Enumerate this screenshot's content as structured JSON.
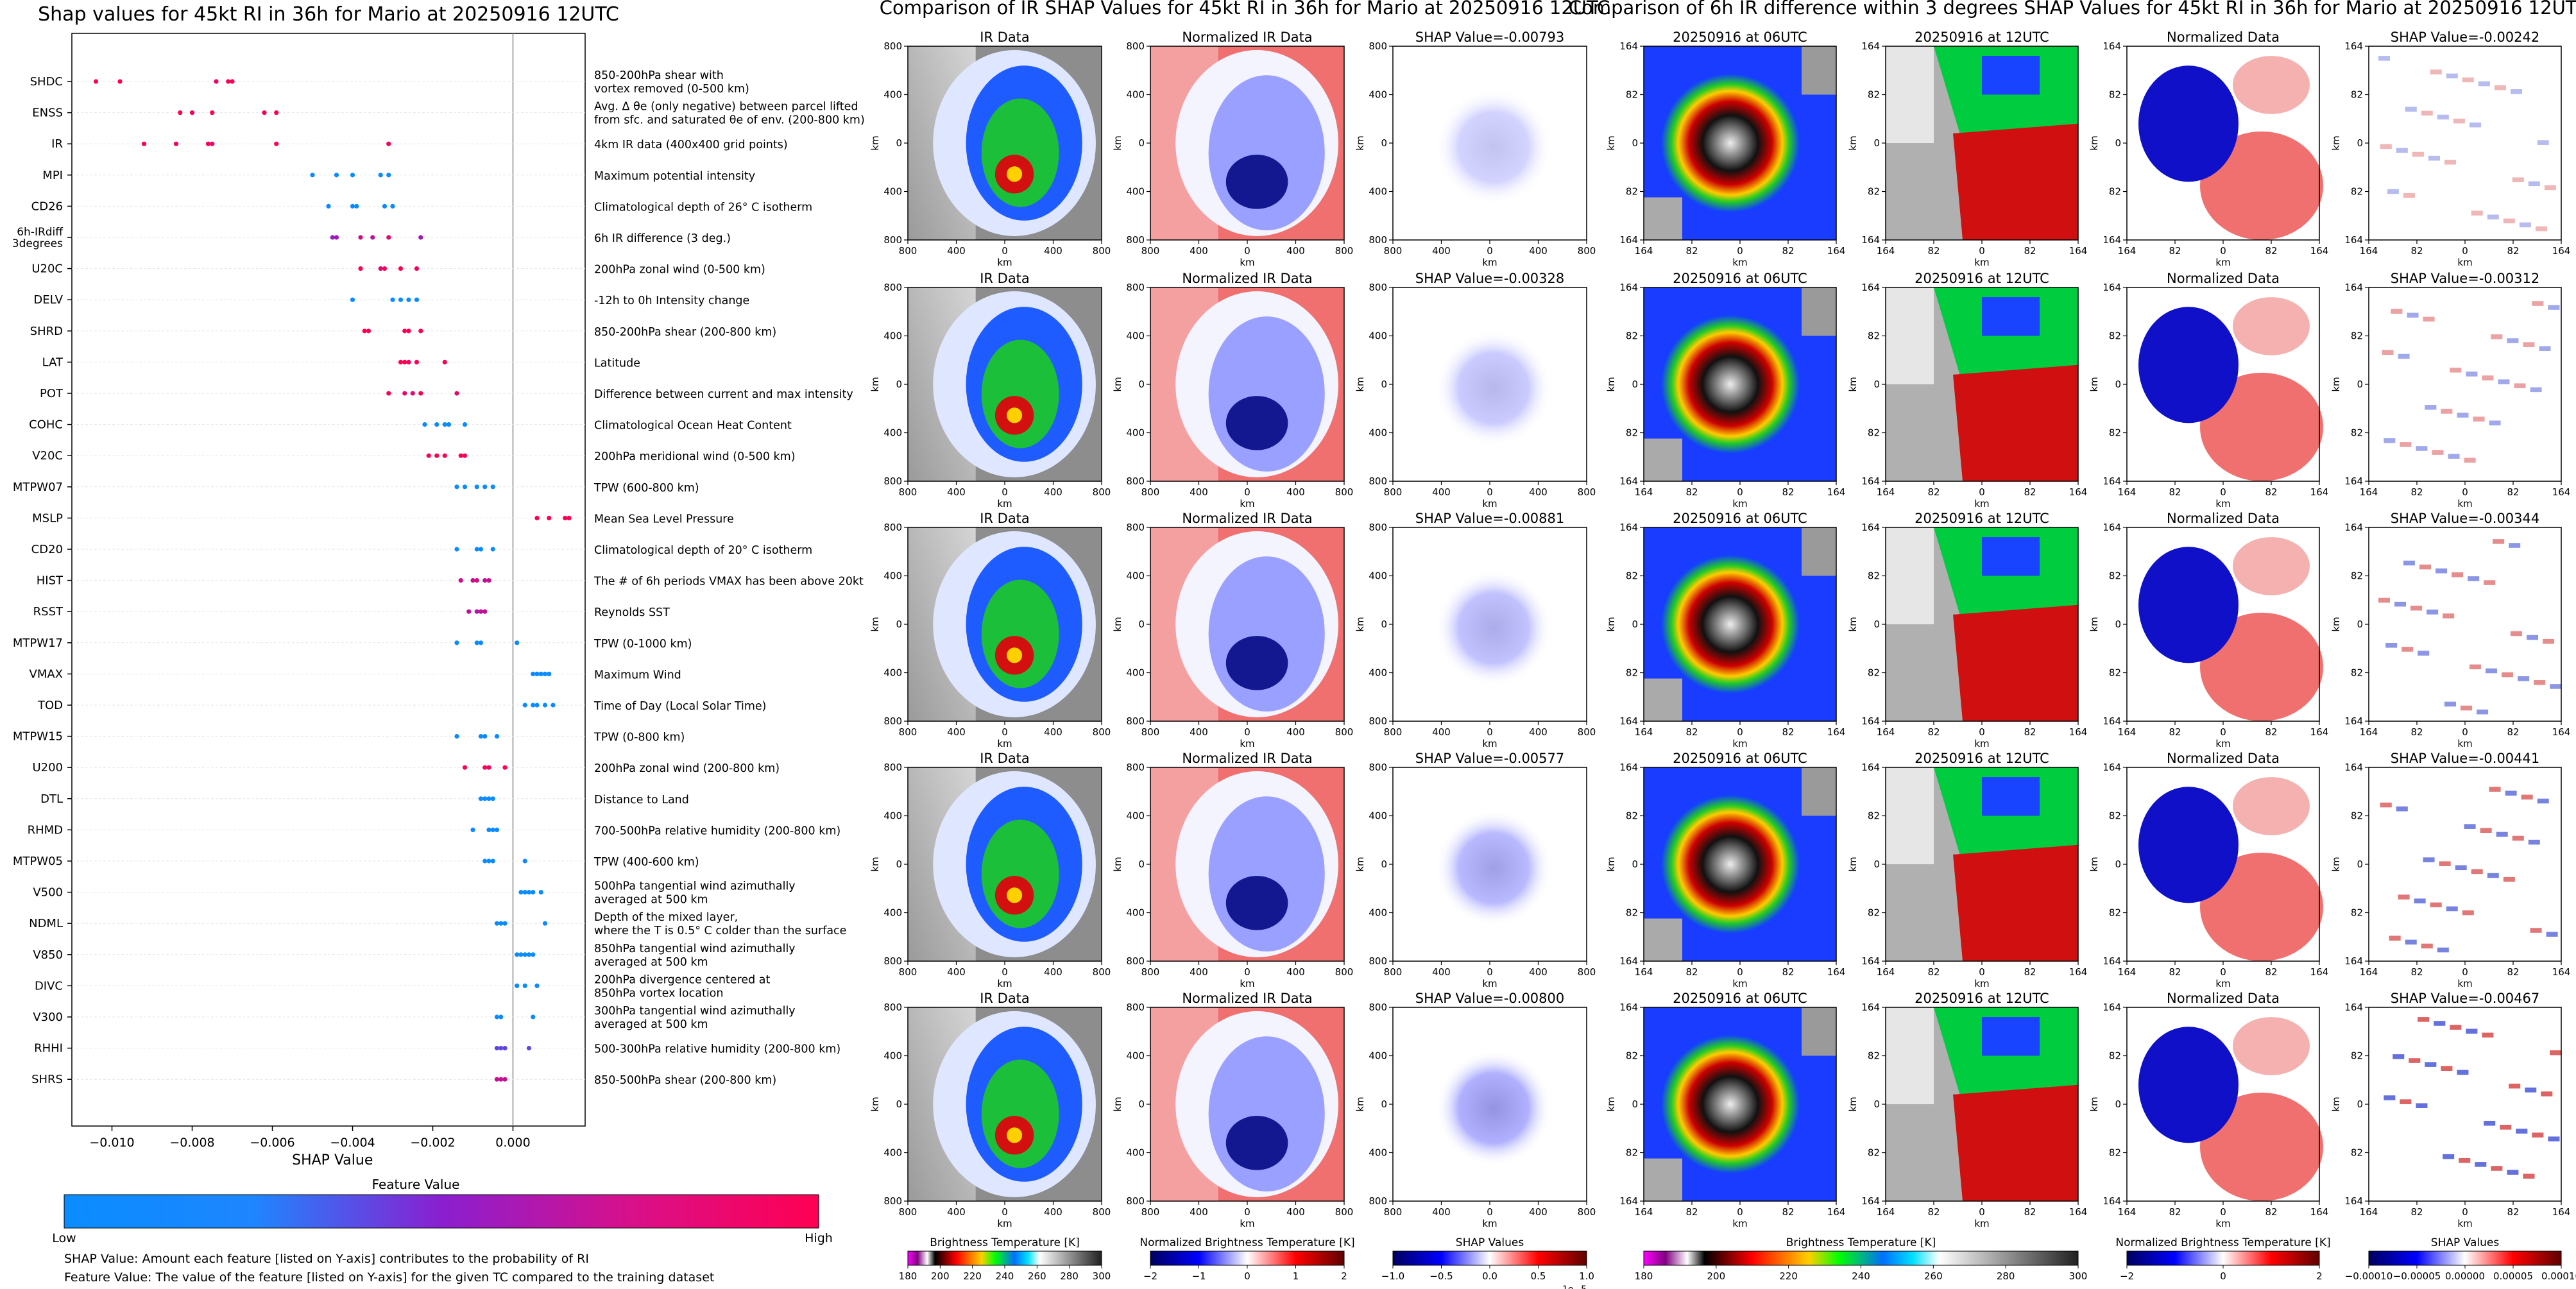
{
  "left": {
    "title": "Shap values for 45kt RI in 36h for Mario at 20250916 12UTC",
    "xlabel": "SHAP Value",
    "xticks": [
      "−0.010",
      "−0.008",
      "−0.006",
      "−0.004",
      "−0.002",
      "0.000"
    ],
    "colorbar_title": "Feature Value",
    "colorbar_low": "Low",
    "colorbar_high": "High",
    "note1": "SHAP Value: Amount each feature [listed on Y-axis] contributes to the probability of RI",
    "note2": "Feature Value: The value of the feature [listed on Y-axis] for the given TC compared to the training dataset"
  },
  "features": [
    {
      "name": "SHDC",
      "desc": [
        "850-200hPa shear with",
        "vortex removed (0-500 km)"
      ]
    },
    {
      "name": "ENSS",
      "desc": [
        "Avg. Δ θe (only negative) between parcel lifted",
        "from sfc. and saturated θe of env. (200-800 km)"
      ]
    },
    {
      "name": "IR",
      "desc": [
        "4km IR data (400x400 grid points)"
      ]
    },
    {
      "name": "MPI",
      "desc": [
        "Maximum potential intensity"
      ]
    },
    {
      "name": "CD26",
      "desc": [
        "Climatological depth of 26° C isotherm"
      ]
    },
    {
      "name": "6h-IRdiff\n3degrees",
      "desc": [
        "6h IR difference (3 deg.)"
      ]
    },
    {
      "name": "U20C",
      "desc": [
        "200hPa zonal wind (0-500 km)"
      ]
    },
    {
      "name": "DELV",
      "desc": [
        "-12h to 0h Intensity change"
      ]
    },
    {
      "name": "SHRD",
      "desc": [
        "850-200hPa shear (200-800 km)"
      ]
    },
    {
      "name": "LAT",
      "desc": [
        "Latitude"
      ]
    },
    {
      "name": "POT",
      "desc": [
        "Difference between current and max intensity"
      ]
    },
    {
      "name": "COHC",
      "desc": [
        "Climatological Ocean Heat Content"
      ]
    },
    {
      "name": "V20C",
      "desc": [
        "200hPa meridional wind (0-500 km)"
      ]
    },
    {
      "name": "MTPW07",
      "desc": [
        "TPW (600-800 km)"
      ]
    },
    {
      "name": "MSLP",
      "desc": [
        "Mean Sea Level Pressure"
      ]
    },
    {
      "name": "CD20",
      "desc": [
        "Climatological depth of 20° C isotherm"
      ]
    },
    {
      "name": "HIST",
      "desc": [
        "The # of 6h periods VMAX has been above 20kt"
      ]
    },
    {
      "name": "RSST",
      "desc": [
        "Reynolds SST"
      ]
    },
    {
      "name": "MTPW17",
      "desc": [
        "TPW (0-1000 km)"
      ]
    },
    {
      "name": "VMAX",
      "desc": [
        "Maximum Wind"
      ]
    },
    {
      "name": "TOD",
      "desc": [
        "Time of Day (Local Solar Time)"
      ]
    },
    {
      "name": "MTPW15",
      "desc": [
        "TPW (0-800 km)"
      ]
    },
    {
      "name": "U200",
      "desc": [
        "200hPa zonal wind (200-800 km)"
      ]
    },
    {
      "name": "DTL",
      "desc": [
        "Distance to Land"
      ]
    },
    {
      "name": "RHMD",
      "desc": [
        "700-500hPa relative humidity (200-800 km)"
      ]
    },
    {
      "name": "MTPW05",
      "desc": [
        "TPW (400-600 km)"
      ]
    },
    {
      "name": "V500",
      "desc": [
        "500hPa tangential wind azimuthally",
        "averaged at 500 km"
      ]
    },
    {
      "name": "NDML",
      "desc": [
        "Depth of the mixed layer,",
        "where the T is 0.5° C colder than the surface"
      ]
    },
    {
      "name": "V850",
      "desc": [
        "850hPa tangential wind azimuthally",
        "averaged at 500 km"
      ]
    },
    {
      "name": "DIVC",
      "desc": [
        "200hPa divergence centered at",
        "850hPa vortex location"
      ]
    },
    {
      "name": "V300",
      "desc": [
        "300hPa tangential wind azimuthally",
        "averaged at 500 km"
      ]
    },
    {
      "name": "RHHI",
      "desc": [
        "500-300hPa relative humidity (200-800 km)"
      ]
    },
    {
      "name": "SHRS",
      "desc": [
        "850-500hPa shear (200-800 km)"
      ]
    }
  ],
  "chart_data": {
    "type": "scatter",
    "title": "Shap values for 45kt RI in 36h for Mario at 20250916 12UTC",
    "xlabel": "SHAP Value",
    "xlim": [
      -0.011,
      0.0018
    ],
    "colors": {
      "low": "#0a8cff",
      "mid": "#8a1fd0",
      "high": "#ff0052"
    },
    "series": [
      {
        "name": "SHDC",
        "x": [
          -0.0104,
          -0.0098,
          -0.0074,
          -0.0071,
          -0.007
        ],
        "fv": [
          1,
          1,
          0.95,
          0.95,
          1
        ]
      },
      {
        "name": "ENSS",
        "x": [
          -0.0083,
          -0.008,
          -0.0075,
          -0.0062,
          -0.0059
        ],
        "fv": [
          1,
          0.95,
          1,
          0.95,
          1
        ]
      },
      {
        "name": "IR",
        "x": [
          -0.0092,
          -0.0084,
          -0.0076,
          -0.0075,
          -0.0059,
          -0.0031
        ],
        "fv": [
          1,
          0.95,
          1,
          0.9,
          1,
          0.95
        ]
      },
      {
        "name": "MPI",
        "x": [
          -0.005,
          -0.0044,
          -0.004,
          -0.0033,
          -0.0031
        ],
        "fv": [
          0,
          0,
          0,
          0,
          0
        ]
      },
      {
        "name": "CD26",
        "x": [
          -0.0046,
          -0.004,
          -0.0039,
          -0.0032,
          -0.003
        ],
        "fv": [
          0,
          0,
          0,
          0,
          0
        ]
      },
      {
        "name": "6h-IRdiff\n3degrees",
        "x": [
          -0.0045,
          -0.0044,
          -0.0038,
          -0.0035,
          -0.0031,
          -0.0023
        ],
        "fv": [
          0.55,
          0.6,
          0.8,
          0.7,
          0.9,
          0.6
        ]
      },
      {
        "name": "U20C",
        "x": [
          -0.0038,
          -0.0033,
          -0.0032,
          -0.0028,
          -0.0024
        ],
        "fv": [
          1,
          0.9,
          0.95,
          1,
          0.95
        ]
      },
      {
        "name": "DELV",
        "x": [
          -0.004,
          -0.003,
          -0.0028,
          -0.0026,
          -0.0024
        ],
        "fv": [
          0,
          0,
          0,
          0,
          0
        ]
      },
      {
        "name": "SHRD",
        "x": [
          -0.0037,
          -0.0036,
          -0.0027,
          -0.0026,
          -0.0023
        ],
        "fv": [
          1,
          1,
          0.95,
          1,
          1
        ]
      },
      {
        "name": "LAT",
        "x": [
          -0.0028,
          -0.0027,
          -0.0026,
          -0.0024,
          -0.0017
        ],
        "fv": [
          1,
          1,
          0.95,
          1,
          1
        ]
      },
      {
        "name": "POT",
        "x": [
          -0.0031,
          -0.0027,
          -0.0025,
          -0.0023,
          -0.0014
        ],
        "fv": [
          1,
          0.9,
          0.85,
          1,
          0.9
        ]
      },
      {
        "name": "COHC",
        "x": [
          -0.0022,
          -0.0019,
          -0.0017,
          -0.0016,
          -0.0012
        ],
        "fv": [
          0,
          0,
          0,
          0,
          0
        ]
      },
      {
        "name": "V20C",
        "x": [
          -0.0021,
          -0.0019,
          -0.0017,
          -0.0013,
          -0.0012
        ],
        "fv": [
          1,
          1,
          1,
          1,
          1
        ]
      },
      {
        "name": "MTPW07",
        "x": [
          -0.0014,
          -0.0012,
          -0.0009,
          -0.0007,
          -0.0005
        ],
        "fv": [
          0,
          0,
          0,
          0,
          0
        ]
      },
      {
        "name": "MSLP",
        "x": [
          0.0006,
          0.0009,
          0.0013,
          0.0014
        ],
        "fv": [
          1,
          1,
          1,
          1
        ]
      },
      {
        "name": "CD20",
        "x": [
          -0.0014,
          -0.0009,
          -0.0008,
          -0.0005
        ],
        "fv": [
          0,
          0,
          0,
          0
        ]
      },
      {
        "name": "HIST",
        "x": [
          -0.0013,
          -0.001,
          -0.0009,
          -0.0007,
          -0.0006
        ],
        "fv": [
          0.8,
          0.75,
          0.85,
          0.7,
          0.8
        ]
      },
      {
        "name": "RSST",
        "x": [
          -0.0011,
          -0.0009,
          -0.0008,
          -0.0007
        ],
        "fv": [
          0.7,
          0.65,
          0.75,
          0.7
        ]
      },
      {
        "name": "MTPW17",
        "x": [
          -0.0014,
          -0.0009,
          -0.0008,
          0.0001
        ],
        "fv": [
          0,
          0,
          0,
          0
        ]
      },
      {
        "name": "VMAX",
        "x": [
          0.0005,
          0.0006,
          0.0007,
          0.0008,
          0.0009
        ],
        "fv": [
          0,
          0,
          0,
          0,
          0
        ]
      },
      {
        "name": "TOD",
        "x": [
          0.0003,
          0.0005,
          0.0006,
          0.0008,
          0.001
        ],
        "fv": [
          0,
          0,
          0,
          0,
          0
        ]
      },
      {
        "name": "MTPW15",
        "x": [
          -0.0014,
          -0.0008,
          -0.0007,
          -0.0004
        ],
        "fv": [
          0,
          0,
          0,
          0
        ]
      },
      {
        "name": "U200",
        "x": [
          -0.0012,
          -0.0007,
          -0.0006,
          -0.0002
        ],
        "fv": [
          1,
          1,
          0.95,
          1
        ]
      },
      {
        "name": "DTL",
        "x": [
          -0.0008,
          -0.0007,
          -0.0006,
          -0.0005
        ],
        "fv": [
          0,
          0,
          0,
          0
        ]
      },
      {
        "name": "RHMD",
        "x": [
          -0.001,
          -0.0006,
          -0.0005,
          -0.0004
        ],
        "fv": [
          0,
          0,
          0,
          0
        ]
      },
      {
        "name": "MTPW05",
        "x": [
          -0.0007,
          -0.0006,
          -0.0005,
          0.0003
        ],
        "fv": [
          0,
          0,
          0,
          0
        ]
      },
      {
        "name": "V500",
        "x": [
          0.0002,
          0.0003,
          0.0004,
          0.0005,
          0.0007
        ],
        "fv": [
          0,
          0,
          0,
          0,
          0
        ]
      },
      {
        "name": "NDML",
        "x": [
          -0.0004,
          -0.0003,
          -0.0002,
          0.0008
        ],
        "fv": [
          0,
          0,
          0,
          0
        ]
      },
      {
        "name": "V850",
        "x": [
          0.0001,
          0.0002,
          0.0003,
          0.0004,
          0.0005
        ],
        "fv": [
          0,
          0,
          0,
          0,
          0
        ]
      },
      {
        "name": "DIVC",
        "x": [
          0.0001,
          0.0003,
          0.0006
        ],
        "fv": [
          0,
          0,
          0
        ]
      },
      {
        "name": "V300",
        "x": [
          -0.0004,
          -0.0003,
          0.0005
        ],
        "fv": [
          0,
          0,
          0
        ]
      },
      {
        "name": "RHHI",
        "x": [
          -0.0004,
          -0.0003,
          -0.0002,
          0.0004
        ],
        "fv": [
          0.35,
          0.3,
          0.35,
          0.3
        ]
      },
      {
        "name": "SHRS",
        "x": [
          -0.0004,
          -0.0003,
          -0.0002
        ],
        "fv": [
          0.75,
          0.75,
          0.75
        ]
      }
    ]
  },
  "middle": {
    "title": "Comparison of IR SHAP Values for 45kt RI in 36h for Mario at 20250916 12UTC",
    "col_titles": [
      "IR Data",
      "Normalized IR Data"
    ],
    "shap_titles": [
      "SHAP Value=-0.00793",
      "SHAP Value=-0.00328",
      "SHAP Value=-0.00881",
      "SHAP Value=-0.00577",
      "SHAP Value=-0.00800"
    ],
    "ticks": [
      "800",
      "400",
      "0",
      "400",
      "800"
    ],
    "axis_label": "km",
    "cbars": [
      {
        "title": "Brightness Temperature [K]",
        "ticks": [
          "180",
          "200",
          "220",
          "240",
          "260",
          "280",
          "300"
        ]
      },
      {
        "title": "Normalized Brightness Temperature [K]",
        "ticks": [
          "−2",
          "−1",
          "0",
          "1",
          "2"
        ]
      },
      {
        "title": "SHAP Values",
        "ticks": [
          "−1.0",
          "−0.5",
          "0.0",
          "0.5",
          "1.0"
        ],
        "exponent": "1e−5"
      }
    ]
  },
  "right": {
    "title": "Comparison of 6h IR difference within 3 degrees SHAP Values for 45kt RI in 36h for Mario at 20250916 12UTC",
    "col_titles": [
      "20250916 at 06UTC",
      "20250916 at 12UTC",
      "Normalized Data"
    ],
    "shap_titles": [
      "SHAP Value=-0.00242",
      "SHAP Value=-0.00312",
      "SHAP Value=-0.00344",
      "SHAP Value=-0.00441",
      "SHAP Value=-0.00467"
    ],
    "ticks": [
      "164",
      "82",
      "0",
      "82",
      "164"
    ],
    "axis_label": "km",
    "cbars": [
      {
        "title": "Brightness Temperature [K]",
        "ticks": [
          "180",
          "200",
          "220",
          "240",
          "260",
          "280",
          "300"
        ]
      },
      {
        "title": "Normalized Brightness Temperature [K]",
        "ticks": [
          "−2",
          "0",
          "2"
        ]
      },
      {
        "title": "SHAP Values",
        "ticks": [
          "−0.00010",
          "−0.00005",
          "0.00000",
          "0.00005",
          "0.00010"
        ]
      }
    ]
  }
}
